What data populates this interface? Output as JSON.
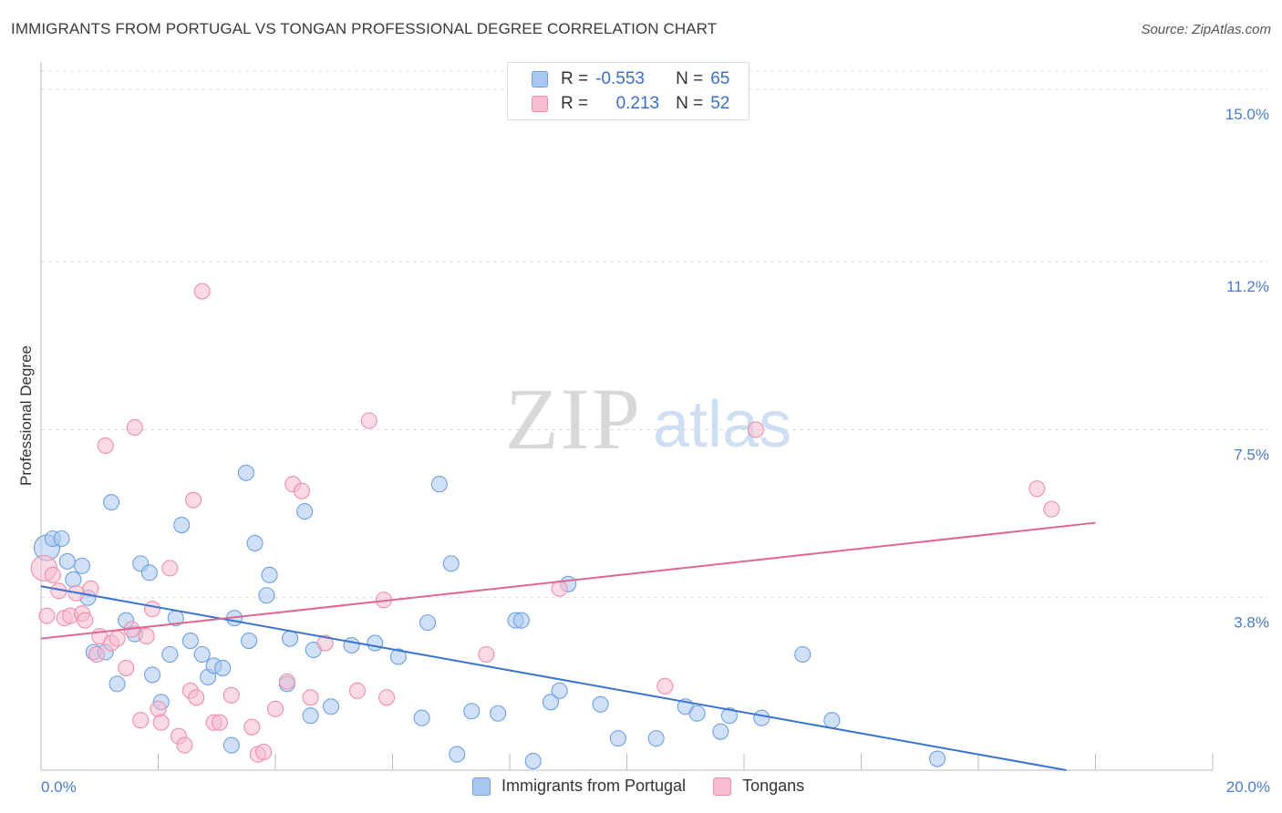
{
  "title": "IMMIGRANTS FROM PORTUGAL VS TONGAN PROFESSIONAL DEGREE CORRELATION CHART",
  "source": "Source: ZipAtlas.com",
  "watermark": {
    "zip": "ZIP",
    "atlas": "atlas"
  },
  "legend": {
    "rows": [
      {
        "r_label": "R =",
        "r_value": "-0.553",
        "n_label": "N =",
        "n_value": "65",
        "color": "#a9c8f0",
        "border": "#6f9fe0"
      },
      {
        "r_label": "R =",
        "r_value": "0.213",
        "n_label": "N =",
        "n_value": "52",
        "color": "#f7bccd",
        "border": "#ec8fac"
      }
    ]
  },
  "bottom_legend": [
    {
      "label": "Immigrants from Portugal",
      "color": "#a9c8f0",
      "border": "#6f9fe0"
    },
    {
      "label": "Tongans",
      "color": "#f7bccd",
      "border": "#ec8fac"
    }
  ],
  "chart_data": {
    "type": "scatter",
    "title": "IMMIGRANTS FROM PORTUGAL VS TONGAN PROFESSIONAL DEGREE CORRELATION CHART",
    "xlabel": "",
    "ylabel": "Professional Degree",
    "xlim": [
      0,
      20
    ],
    "ylim": [
      0,
      15.4
    ],
    "x_tick_labels": [
      "0.0%",
      "20.0%"
    ],
    "y_ticks": [
      3.8,
      7.5,
      11.2,
      15.0
    ],
    "y_tick_labels": [
      "3.8%",
      "7.5%",
      "11.2%",
      "15.0%"
    ],
    "grid": true,
    "legend_position": "top-center",
    "series": [
      {
        "name": "Immigrants from Portugal",
        "color": "#a9c8f0",
        "stroke": "#6f9fe0",
        "trend": {
          "x": [
            0,
            17.5
          ],
          "y": [
            4.05,
            0.0
          ],
          "color": "#3a74d0"
        },
        "points": [
          [
            0.1,
            4.9
          ],
          [
            0.2,
            5.1
          ],
          [
            0.35,
            5.1
          ],
          [
            0.45,
            4.6
          ],
          [
            0.55,
            4.2
          ],
          [
            0.7,
            4.5
          ],
          [
            0.8,
            3.8
          ],
          [
            0.9,
            2.6
          ],
          [
            1.1,
            2.6
          ],
          [
            1.2,
            5.9
          ],
          [
            1.3,
            1.9
          ],
          [
            1.45,
            3.3
          ],
          [
            1.6,
            3.0
          ],
          [
            1.7,
            4.55
          ],
          [
            1.85,
            4.35
          ],
          [
            1.9,
            2.1
          ],
          [
            2.05,
            1.5
          ],
          [
            2.2,
            2.55
          ],
          [
            2.3,
            3.35
          ],
          [
            2.4,
            5.4
          ],
          [
            2.55,
            2.85
          ],
          [
            2.75,
            2.55
          ],
          [
            2.85,
            2.05
          ],
          [
            2.95,
            2.3
          ],
          [
            3.1,
            2.25
          ],
          [
            3.25,
            0.55
          ],
          [
            3.3,
            3.35
          ],
          [
            3.5,
            6.55
          ],
          [
            3.55,
            2.85
          ],
          [
            3.65,
            5.0
          ],
          [
            3.85,
            3.85
          ],
          [
            3.9,
            4.3
          ],
          [
            4.2,
            1.9
          ],
          [
            4.25,
            2.9
          ],
          [
            4.5,
            5.7
          ],
          [
            4.6,
            1.2
          ],
          [
            4.65,
            2.65
          ],
          [
            4.95,
            1.4
          ],
          [
            5.3,
            2.75
          ],
          [
            5.7,
            2.8
          ],
          [
            6.1,
            2.5
          ],
          [
            6.5,
            1.15
          ],
          [
            6.6,
            3.25
          ],
          [
            6.8,
            6.3
          ],
          [
            7.0,
            4.55
          ],
          [
            7.1,
            0.35
          ],
          [
            7.35,
            1.3
          ],
          [
            7.8,
            1.25
          ],
          [
            8.1,
            3.3
          ],
          [
            8.2,
            3.3
          ],
          [
            8.4,
            0.2
          ],
          [
            8.7,
            1.5
          ],
          [
            8.85,
            1.75
          ],
          [
            9.0,
            4.1
          ],
          [
            9.55,
            1.45
          ],
          [
            9.85,
            0.7
          ],
          [
            10.5,
            0.7
          ],
          [
            11.0,
            1.4
          ],
          [
            11.2,
            1.25
          ],
          [
            11.6,
            0.85
          ],
          [
            11.75,
            1.2
          ],
          [
            12.3,
            1.15
          ],
          [
            13.0,
            2.55
          ],
          [
            13.5,
            1.1
          ],
          [
            15.3,
            0.25
          ]
        ]
      },
      {
        "name": "Tongans",
        "color": "#f7bccd",
        "stroke": "#ec8fac",
        "trend": {
          "x": [
            0,
            18.0
          ],
          "y": [
            2.9,
            5.45
          ],
          "color": "#e0668f"
        },
        "points": [
          [
            0.05,
            4.45
          ],
          [
            0.1,
            3.4
          ],
          [
            0.2,
            4.3
          ],
          [
            0.3,
            3.95
          ],
          [
            0.4,
            3.35
          ],
          [
            0.5,
            3.4
          ],
          [
            0.6,
            3.9
          ],
          [
            0.7,
            3.45
          ],
          [
            0.75,
            3.3
          ],
          [
            0.85,
            4.0
          ],
          [
            0.95,
            2.55
          ],
          [
            1.0,
            2.95
          ],
          [
            1.1,
            7.15
          ],
          [
            1.2,
            2.8
          ],
          [
            1.3,
            2.9
          ],
          [
            1.45,
            2.25
          ],
          [
            1.55,
            3.1
          ],
          [
            1.6,
            7.55
          ],
          [
            1.7,
            1.1
          ],
          [
            1.8,
            2.95
          ],
          [
            1.9,
            3.55
          ],
          [
            2.0,
            1.35
          ],
          [
            2.05,
            1.05
          ],
          [
            2.2,
            4.45
          ],
          [
            2.35,
            0.75
          ],
          [
            2.45,
            0.55
          ],
          [
            2.55,
            1.75
          ],
          [
            2.6,
            5.95
          ],
          [
            2.65,
            1.6
          ],
          [
            2.75,
            10.55
          ],
          [
            2.95,
            1.05
          ],
          [
            3.05,
            1.05
          ],
          [
            3.25,
            1.65
          ],
          [
            3.6,
            0.95
          ],
          [
            3.7,
            0.35
          ],
          [
            3.8,
            0.4
          ],
          [
            4.0,
            1.35
          ],
          [
            4.2,
            1.95
          ],
          [
            4.3,
            6.3
          ],
          [
            4.45,
            6.15
          ],
          [
            4.6,
            1.6
          ],
          [
            4.85,
            2.8
          ],
          [
            5.4,
            1.75
          ],
          [
            5.6,
            7.7
          ],
          [
            5.85,
            3.75
          ],
          [
            5.9,
            1.6
          ],
          [
            7.6,
            2.55
          ],
          [
            8.85,
            4.0
          ],
          [
            10.65,
            1.85
          ],
          [
            12.2,
            7.5
          ],
          [
            17.0,
            6.2
          ],
          [
            17.25,
            5.75
          ]
        ]
      }
    ]
  }
}
